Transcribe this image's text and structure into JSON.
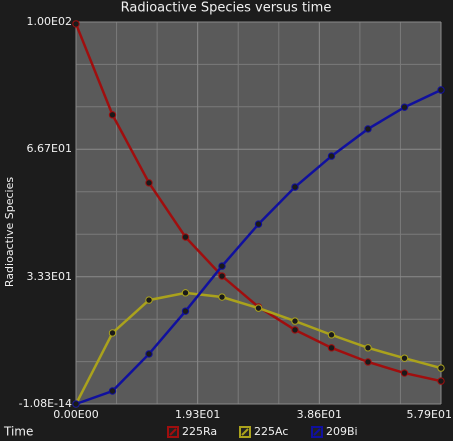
{
  "chart_data": {
    "type": "line",
    "title": "Radioactive Species versus time",
    "x_label": "Time",
    "y_label": "Radioactive Species",
    "x": [
      0,
      5.79,
      11.58,
      17.37,
      23.16,
      28.95,
      34.74,
      40.53,
      46.32,
      52.11,
      57.9
    ],
    "series": [
      {
        "name": "225Ra",
        "color": "#a00e0e",
        "values": [
          99.5,
          75.7,
          57.9,
          43.7,
          33.5,
          25.4,
          19.4,
          14.7,
          11.0,
          8.1,
          6.0
        ]
      },
      {
        "name": "225Ac",
        "color": "#aaa21c",
        "values": [
          0,
          18.6,
          27.2,
          29.1,
          28.0,
          25.1,
          21.7,
          18.1,
          14.7,
          12.0,
          9.4
        ]
      },
      {
        "name": "209Bi",
        "color": "#10109e",
        "values": [
          0,
          3.4,
          13.1,
          24.3,
          36.1,
          47.1,
          56.8,
          64.9,
          72.0,
          77.7,
          82.2
        ]
      }
    ],
    "xlim": [
      0,
      57.9
    ],
    "xticks": [
      {
        "value": 0,
        "label": "0.00E00"
      },
      {
        "value": 19.3,
        "label": "1.93E01"
      },
      {
        "value": 38.6,
        "label": "3.86E01"
      },
      {
        "value": 57.9,
        "label": "5.79E01"
      }
    ],
    "ylim": [
      0,
      100
    ],
    "yticks": [
      {
        "value": 0,
        "label": "-1.08E-14"
      },
      {
        "value": 33.3,
        "label": "3.33E01"
      },
      {
        "value": 66.7,
        "label": "6.67E01"
      },
      {
        "value": 100,
        "label": "1.00E02"
      }
    ],
    "grid": true,
    "legend": "bottom"
  }
}
